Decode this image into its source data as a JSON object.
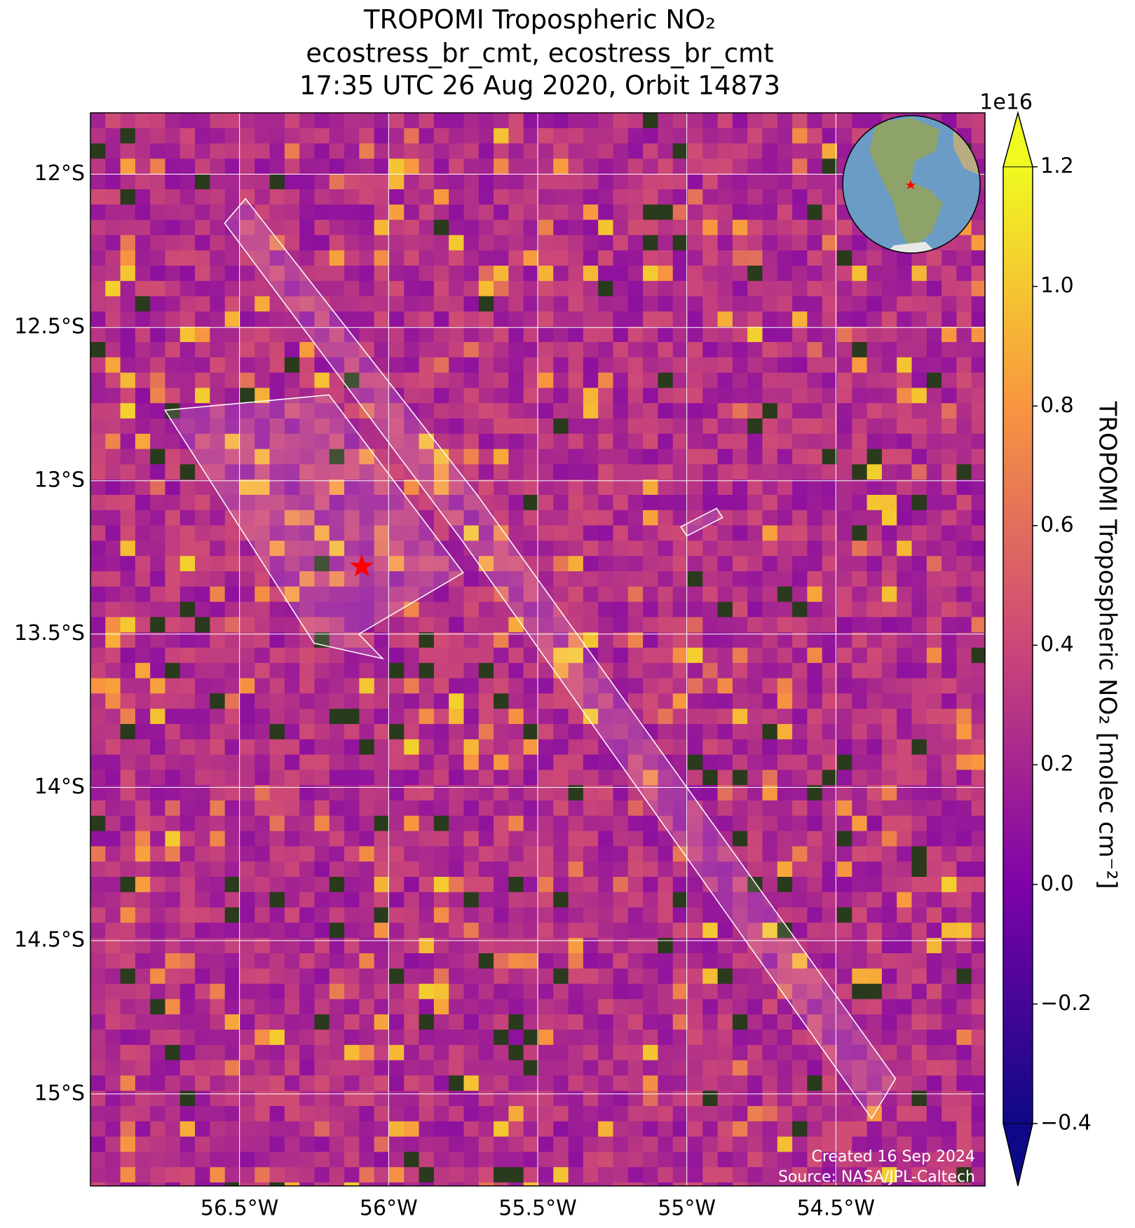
{
  "chart_data": {
    "type": "map",
    "title": [
      "TROPOMI Tropospheric NO₂",
      "ecostress_br_cmt, ecostress_br_cmt",
      "17:35 UTC 26 Aug 2020, Orbit 14873"
    ],
    "xlim": [
      -57,
      -54
    ],
    "xticks": [
      {
        "value": -56.5,
        "label": "56.5°W"
      },
      {
        "value": -56,
        "label": "56°W"
      },
      {
        "value": -55.5,
        "label": "55.5°W"
      },
      {
        "value": -55,
        "label": "55°W"
      },
      {
        "value": -54.5,
        "label": "54.5°W"
      }
    ],
    "ylim": [
      -15.3,
      -11.8
    ],
    "yticks": [
      {
        "value": -12,
        "label": "12°S"
      },
      {
        "value": -12.5,
        "label": "12.5°S"
      },
      {
        "value": -13,
        "label": "13°S"
      },
      {
        "value": -13.5,
        "label": "13.5°S"
      },
      {
        "value": -14,
        "label": "14°S"
      },
      {
        "value": -14.5,
        "label": "14.5°S"
      },
      {
        "value": -15,
        "label": "15°S"
      }
    ],
    "grid": true,
    "marker": {
      "lon": -56.09,
      "lat": -13.28,
      "color": "#ff0000"
    },
    "colorbar": {
      "label": "TROPOMI Tropospheric NO₂ [molec cm⁻²]",
      "scale_label": "1e16",
      "clim": [
        -0.4,
        1.2
      ],
      "ticks": [
        {
          "value": -0.4,
          "label": "−0.4"
        },
        {
          "value": -0.2,
          "label": "−0.2"
        },
        0.0,
        0.2,
        0.4,
        0.6,
        0.8,
        1.0,
        1.2
      ],
      "colormap": "plasma"
    },
    "footer": [
      "Created 16 Sep 2024",
      "Source: NASA/JPL-Caltech"
    ]
  }
}
